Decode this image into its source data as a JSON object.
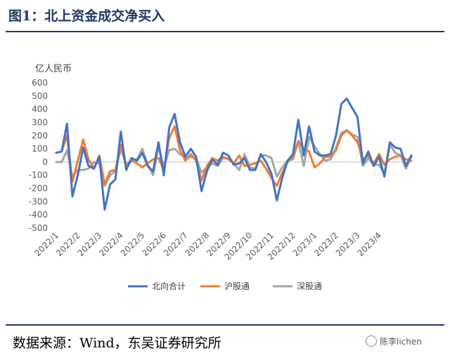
{
  "figure": {
    "title": "图1：北上资金成交净买入",
    "source": "数据来源：Wind，东吴证券研究所",
    "watermark": "陈李lichen"
  },
  "chart_data": {
    "type": "line",
    "ylabel": "亿人民币",
    "ylim": [
      -500,
      600
    ],
    "yticks": [
      -500,
      -400,
      -300,
      -200,
      -100,
      0,
      100,
      200,
      300,
      400,
      500,
      600
    ],
    "x_tick_labels": [
      "2022/1",
      "2022/2",
      "2022/3",
      "2022/4",
      "2022/5",
      "2022/6",
      "2022/7",
      "2022/8",
      "2022/9",
      "2022/10",
      "2022/11",
      "2022/12",
      "2023/1",
      "2023/2",
      "2023/3",
      "2023/4"
    ],
    "points_per_month": 4,
    "legend_position": "bottom",
    "grid": false,
    "series": [
      {
        "name": "北向合计",
        "color": "#4472c4",
        "values": [
          70,
          80,
          290,
          -260,
          -100,
          110,
          -30,
          -50,
          40,
          -360,
          -170,
          -130,
          230,
          -60,
          30,
          10,
          70,
          -30,
          -70,
          150,
          -100,
          260,
          365,
          150,
          40,
          100,
          40,
          -220,
          -70,
          20,
          -20,
          70,
          50,
          -20,
          -10,
          30,
          -60,
          -60,
          60,
          0,
          -90,
          -290,
          -120,
          10,
          60,
          320,
          50,
          270,
          80,
          50,
          50,
          60,
          200,
          440,
          480,
          410,
          340,
          -10,
          80,
          -30,
          40,
          -110,
          150,
          110,
          100,
          -30,
          50
        ],
        "line_width": 3
      },
      {
        "name": "沪股通",
        "color": "#ed7d31",
        "values": [
          70,
          80,
          200,
          -150,
          10,
          170,
          20,
          -50,
          50,
          -170,
          -70,
          -60,
          130,
          -40,
          10,
          -10,
          -40,
          -10,
          20,
          30,
          -60,
          180,
          270,
          90,
          10,
          60,
          10,
          -140,
          -30,
          30,
          10,
          40,
          20,
          -10,
          50,
          -30,
          -20,
          -10,
          10,
          -50,
          -120,
          -180,
          -80,
          0,
          40,
          160,
          100,
          80,
          -40,
          -10,
          40,
          40,
          90,
          200,
          240,
          200,
          150,
          20,
          50,
          -10,
          60,
          -20,
          20,
          40,
          50,
          20,
          10
        ],
        "line_width": 3
      },
      {
        "name": "深股通",
        "color": "#a5a5a5",
        "values": [
          0,
          0,
          90,
          -110,
          -60,
          -60,
          -50,
          0,
          -10,
          -180,
          -100,
          -70,
          100,
          -20,
          20,
          20,
          100,
          -20,
          -100,
          120,
          -40,
          90,
          100,
          60,
          30,
          40,
          30,
          -80,
          -40,
          -10,
          -30,
          30,
          30,
          -10,
          -60,
          60,
          -40,
          -50,
          50,
          50,
          30,
          -110,
          -40,
          10,
          20,
          160,
          -30,
          190,
          120,
          60,
          10,
          20,
          110,
          220,
          240,
          210,
          190,
          -30,
          30,
          -20,
          -20,
          -90,
          130,
          70,
          50,
          -50,
          40
        ],
        "line_width": 3
      }
    ]
  }
}
